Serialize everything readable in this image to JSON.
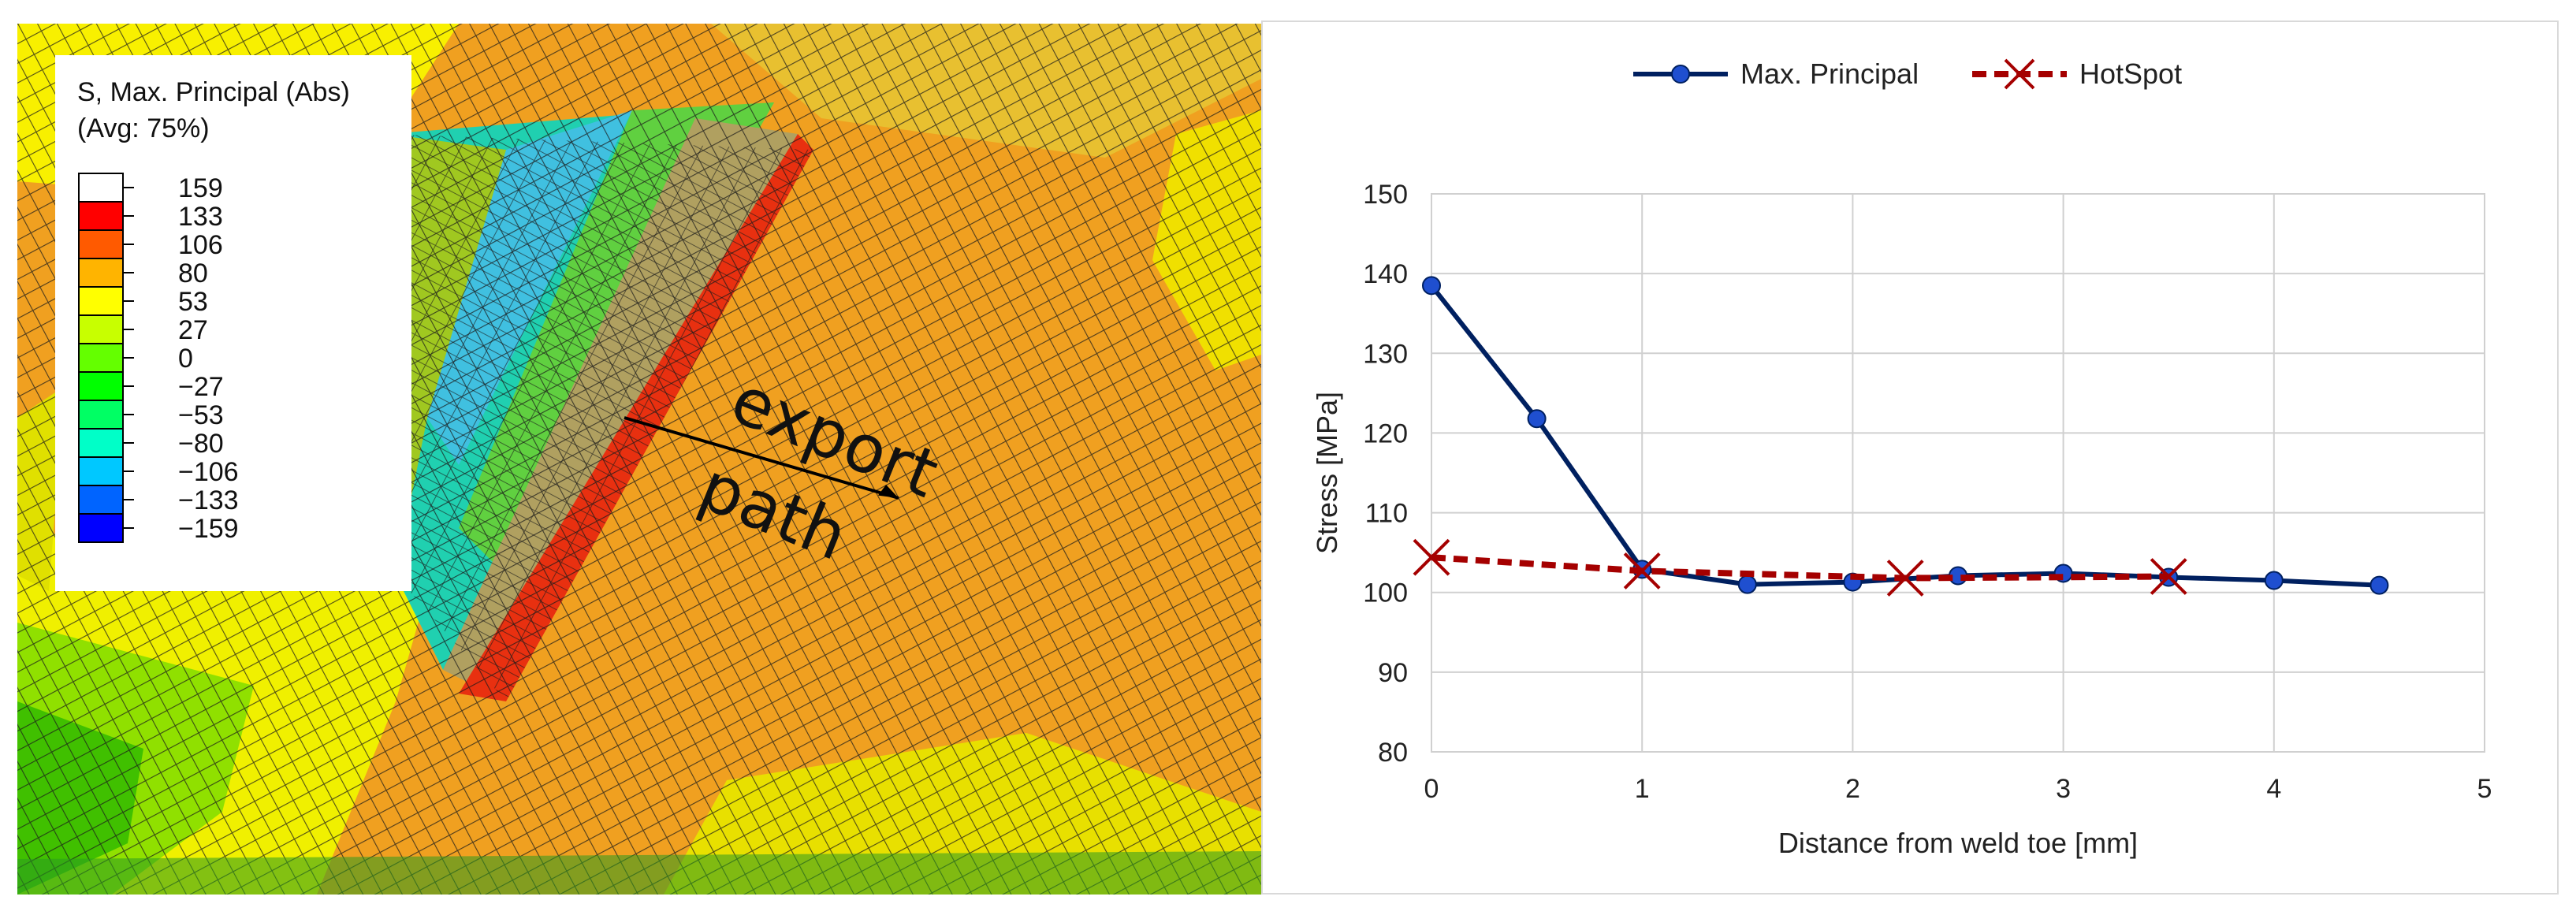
{
  "fem": {
    "legend": {
      "title_line1": "S, Max. Principal (Abs)",
      "title_line2": "(Avg: 75%)",
      "levels": [
        "159",
        "133",
        "106",
        "80",
        "53",
        "27",
        "0",
        "−27",
        "−53",
        "−80",
        "−106",
        "−133",
        "−159"
      ],
      "band_colors": [
        "#ff0000",
        "#ff5a00",
        "#ffb400",
        "#ffff00",
        "#c8ff00",
        "#64ff00",
        "#00ff00",
        "#00ff64",
        "#00ffc8",
        "#00c8ff",
        "#0064ff",
        "#0000ff",
        "#ff0080"
      ]
    },
    "annotation": {
      "line1": "export",
      "line2": "path"
    }
  },
  "chart_data": {
    "type": "line",
    "title": "",
    "xlabel": "Distance from weld toe [mm]",
    "ylabel": "Stress [MPa]",
    "xlim": [
      0,
      5
    ],
    "ylim": [
      80,
      150
    ],
    "xticks": [
      0,
      1,
      2,
      3,
      4,
      5
    ],
    "yticks": [
      80,
      90,
      100,
      110,
      120,
      130,
      140,
      150
    ],
    "grid": true,
    "legend_position": "top-center",
    "series": [
      {
        "name": "Max. Principal",
        "color": "#002060",
        "marker": "circle",
        "line_style": "solid",
        "x": [
          0,
          0.5,
          1.0,
          1.5,
          2.0,
          2.5,
          3.0,
          3.5,
          4.0,
          4.5
        ],
        "y": [
          138.5,
          121.8,
          102.9,
          101.0,
          101.3,
          102.1,
          102.4,
          101.9,
          101.5,
          100.9
        ]
      },
      {
        "name": "HotSpot",
        "color": "#a50000",
        "marker": "x",
        "line_style": "dashed",
        "x": [
          0,
          1.0,
          2.25,
          3.5
        ],
        "y": [
          104.4,
          102.7,
          101.8,
          102.0
        ]
      }
    ]
  }
}
